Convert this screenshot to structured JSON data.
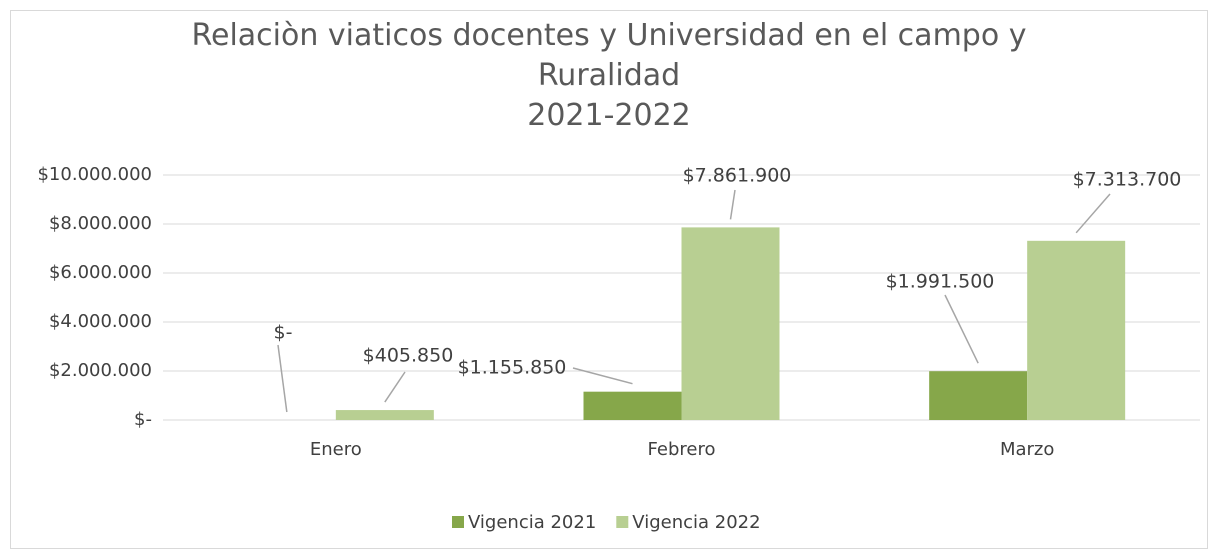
{
  "chart_data": {
    "type": "bar",
    "title": "Relaciòn viaticos docentes y Universidad en el campo y Ruralidad",
    "subtitle": "2021-2022",
    "categories": [
      "Enero",
      "Febrero",
      "Marzo"
    ],
    "series": [
      {
        "name": "Vigencia 2021",
        "color": "#86a74a",
        "values": [
          0,
          1155850,
          1991500
        ],
        "value_labels": [
          "$-",
          "$1.155.850",
          "$1.991.500"
        ]
      },
      {
        "name": "Vigencia 2022",
        "color": "#b8cf92",
        "values": [
          405850,
          7861900,
          7313700
        ],
        "value_labels": [
          "$405.850",
          "$7.861.900",
          "$7.313.700"
        ]
      }
    ],
    "ylim": [
      0,
      10000000
    ],
    "yticks": [
      {
        "value": 0,
        "label": "$-"
      },
      {
        "value": 2000000,
        "label": "$2.000.000"
      },
      {
        "value": 4000000,
        "label": "$4.000.000"
      },
      {
        "value": 6000000,
        "label": "$6.000.000"
      },
      {
        "value": 8000000,
        "label": "$8.000.000"
      },
      {
        "value": 10000000,
        "label": "$10.000.000"
      }
    ],
    "grid": true,
    "legend": "bottom"
  }
}
